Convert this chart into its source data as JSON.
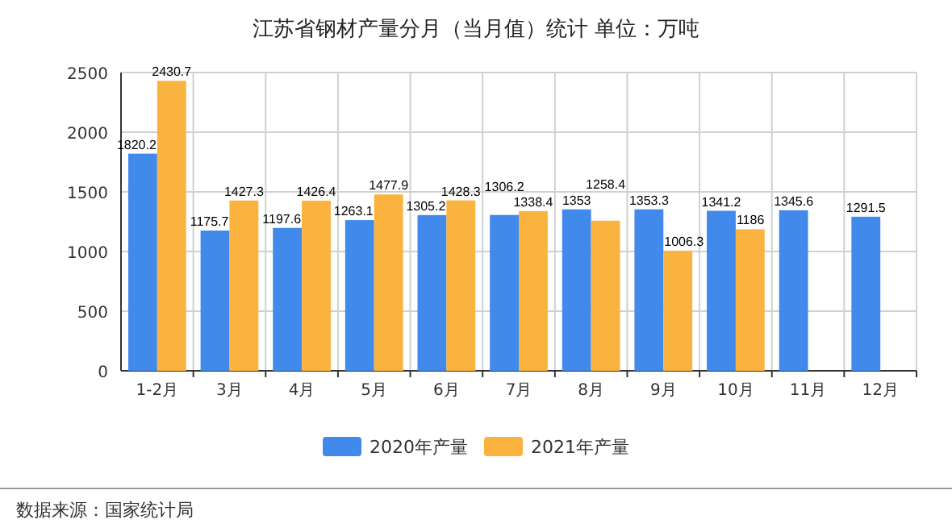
{
  "chart_data": {
    "type": "bar",
    "title": "江苏省钢材产量分月（当月值）统计 单位：万吨",
    "categories": [
      "1-2月",
      "3月",
      "4月",
      "5月",
      "6月",
      "7月",
      "8月",
      "9月",
      "10月",
      "11月",
      "12月"
    ],
    "series": [
      {
        "name": "2020年产量",
        "color": "#4189ea",
        "values": [
          1820.2,
          1175.7,
          1197.6,
          1263.1,
          1305.2,
          1306.2,
          1353,
          1353.3,
          1341.2,
          1345.6,
          1291.5
        ]
      },
      {
        "name": "2021年产量",
        "color": "#fbb340",
        "values": [
          2430.7,
          1427.3,
          1426.4,
          1477.9,
          1428.3,
          1338.4,
          1258.4,
          1006.3,
          1186,
          null,
          null
        ]
      }
    ],
    "ylim": [
      0,
      2500
    ],
    "yticks": [
      0,
      500,
      1000,
      1500,
      2000,
      2500
    ],
    "grid": true,
    "legend": "bottom",
    "data_labels": true,
    "annotations": [
      "数据来源：国家统计局"
    ]
  }
}
